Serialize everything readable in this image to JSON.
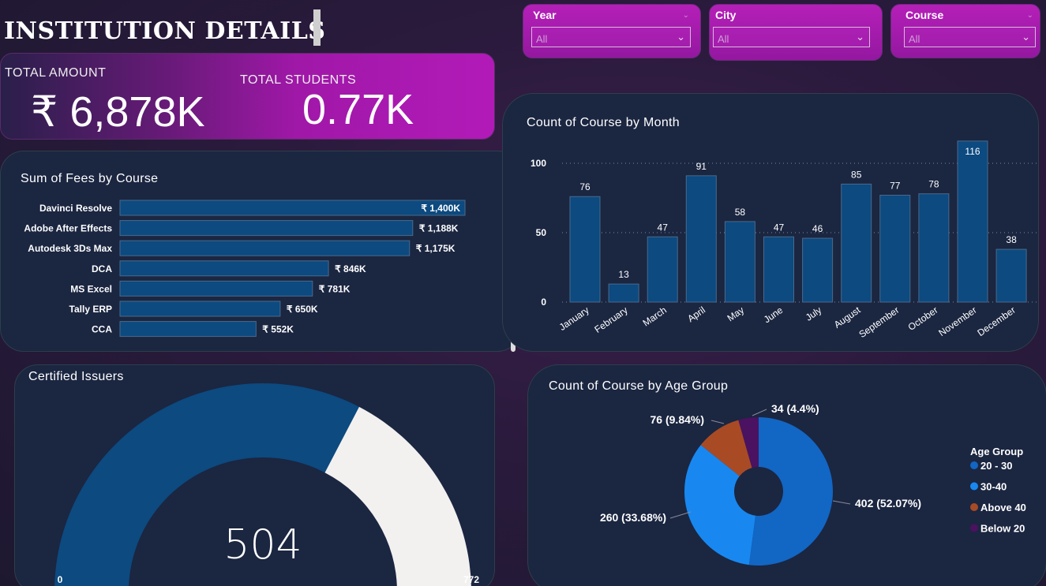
{
  "header": {
    "title": "INSTITUTION DETAILS"
  },
  "slicers": [
    {
      "label": "Year",
      "value": "All"
    },
    {
      "label": "City",
      "value": "All"
    },
    {
      "label": "Course",
      "value": "All"
    }
  ],
  "kpis": {
    "total_amount_label": "TOTAL AMOUNT",
    "total_amount_value": "₹ 6,878K",
    "total_students_label": "TOTAL STUDENTS",
    "total_students_value": "0.77K"
  },
  "chart_data": [
    {
      "type": "bar",
      "orientation": "horizontal",
      "title": "Sum of Fees by Course",
      "categories": [
        "Davinci Resolve",
        "Adobe After Effects",
        "Autodesk 3Ds Max",
        "DCA",
        "MS Excel",
        "Tally ERP",
        "CCA"
      ],
      "values": [
        1400,
        1188,
        1175,
        846,
        781,
        650,
        552
      ],
      "data_labels": [
        "₹ 1,400K",
        "₹ 1,188K",
        "₹ 1,175K",
        "₹ 846K",
        "₹ 781K",
        "₹ 650K",
        "₹ 552K"
      ],
      "color": "#0c4a80"
    },
    {
      "type": "bar",
      "title": "Count of Course by Month",
      "categories": [
        "January",
        "February",
        "March",
        "April",
        "May",
        "June",
        "July",
        "August",
        "September",
        "October",
        "November",
        "December"
      ],
      "values": [
        76,
        13,
        47,
        91,
        58,
        47,
        46,
        85,
        77,
        78,
        116,
        38
      ],
      "yticks": [
        0,
        50,
        100
      ],
      "ylim": [
        0,
        120
      ],
      "grid": true,
      "color": "#0c4a80"
    },
    {
      "type": "gauge",
      "title": "Certified Issuers",
      "value": 504,
      "min": 0,
      "max": 772,
      "value_label": "504",
      "min_label": "0",
      "max_label": "772",
      "fill_color": "#0c4a80",
      "track_color": "#f2f1f0"
    },
    {
      "type": "pie",
      "title": "Count of Course by Age Group",
      "legend_title": "Age Group",
      "legend_position": "right",
      "slices": [
        {
          "name": "20 - 30",
          "value": 402,
          "label": "402 (52.07%)",
          "color": "#1266c4"
        },
        {
          "name": "30-40",
          "value": 260,
          "label": "260 (33.68%)",
          "color": "#1888f0"
        },
        {
          "name": "Above 40",
          "value": 76,
          "label": "76 (9.84%)",
          "color": "#a84b25"
        },
        {
          "name": "Below 20",
          "value": 34,
          "label": "34 (4.4%)",
          "color": "#4a1260"
        }
      ]
    }
  ]
}
